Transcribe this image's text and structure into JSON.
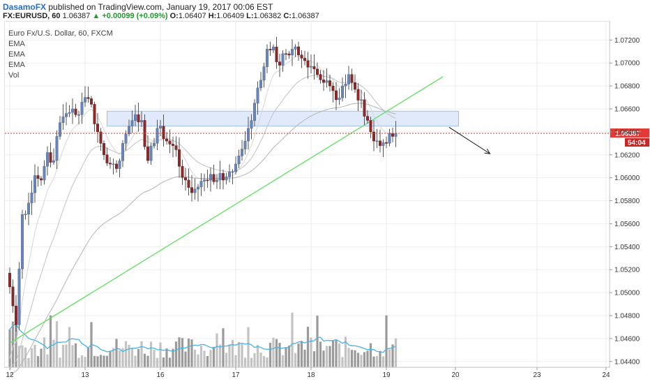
{
  "header": {
    "author": "DasamoFX",
    "published_text": "published on TradingView.com, January 19, 2017 00:06 EST",
    "symbol": "FX:EURUSD, 60",
    "last": "1.06387",
    "change": "+0.00099 (+0.09%)",
    "open_label": "O:",
    "open": "1.06407",
    "high_label": "H:",
    "high": "1.06409",
    "low_label": "L:",
    "low": "1.06382",
    "close_label": "C:",
    "close": "1.06387"
  },
  "legend": {
    "title": "Euro Fx/U.S. Dollar, 60, FXCM",
    "items": [
      "EMA",
      "EMA",
      "EMA",
      "Vol"
    ]
  },
  "colors": {
    "up": "#6a86b8",
    "down": "#8b2a2a",
    "wick": "#555555",
    "zone_fill": "#dde8fb",
    "zone_stroke": "#9cb6e6",
    "trendline": "#5ee05e",
    "vol_ma": "#47b3e6",
    "price_line": "#d0382f",
    "tag_bg": "#e53935",
    "ema": "#c8c8c8",
    "vol_up": "#b8b8b8",
    "vol_down": "#8a8a8a"
  },
  "chart_data": {
    "type": "candlestick",
    "y_range": [
      1.0435,
      1.0736
    ],
    "y_ticks": [
      "1.07200",
      "1.07000",
      "1.06800",
      "1.06600",
      "1.06400",
      "1.06200",
      "1.06000",
      "1.05800",
      "1.05600",
      "1.05400",
      "1.05200",
      "1.05000",
      "1.04800",
      "1.04600",
      "1.04400"
    ],
    "y_tick_values": [
      1.072,
      1.07,
      1.068,
      1.066,
      1.064,
      1.062,
      1.06,
      1.058,
      1.056,
      1.054,
      1.052,
      1.05,
      1.048,
      1.046,
      1.044
    ],
    "x_ticks": [
      "12",
      "13",
      "16",
      "17",
      "18",
      "19",
      "20",
      "23",
      "24"
    ],
    "x_tick_index": [
      0,
      24,
      48,
      72,
      96,
      120,
      142,
      168,
      190
    ],
    "num_bars": 144,
    "current_price": 1.06387,
    "current_price_label": "1.06387",
    "countdown_label": "54:04",
    "resistance_zone": {
      "from_index": 31,
      "to_index": 143,
      "low": 1.0645,
      "high": 1.0658
    },
    "trendline": {
      "from_index": 0,
      "from_price": 1.0456,
      "to_index": 138,
      "to_price": 1.0688
    },
    "arrow": {
      "from_index": 140,
      "from_price": 1.0644,
      "to_index": 153,
      "to_price": 1.0621
    },
    "anchors": [
      [
        0,
        1.0505
      ],
      [
        2,
        1.0472
      ],
      [
        4,
        1.0568
      ],
      [
        6,
        1.0578
      ],
      [
        8,
        1.0602
      ],
      [
        10,
        1.0598
      ],
      [
        12,
        1.0622
      ],
      [
        14,
        1.0615
      ],
      [
        16,
        1.0648
      ],
      [
        18,
        1.0656
      ],
      [
        20,
        1.066
      ],
      [
        22,
        1.0655
      ],
      [
        24,
        1.067
      ],
      [
        26,
        1.0664
      ],
      [
        28,
        1.064
      ],
      [
        30,
        1.062
      ],
      [
        32,
        1.0612
      ],
      [
        34,
        1.0608
      ],
      [
        36,
        1.063
      ],
      [
        38,
        1.0645
      ],
      [
        40,
        1.0655
      ],
      [
        42,
        1.065
      ],
      [
        44,
        1.0615
      ],
      [
        46,
        1.063
      ],
      [
        48,
        1.0645
      ],
      [
        50,
        1.0632
      ],
      [
        52,
        1.0628
      ],
      [
        54,
        1.061
      ],
      [
        56,
        1.0598
      ],
      [
        58,
        1.0587
      ],
      [
        60,
        1.0592
      ],
      [
        62,
        1.0598
      ],
      [
        64,
        1.0603
      ],
      [
        66,
        1.0598
      ],
      [
        68,
        1.0598
      ],
      [
        70,
        1.0605
      ],
      [
        72,
        1.0612
      ],
      [
        74,
        1.0625
      ],
      [
        76,
        1.0643
      ],
      [
        78,
        1.0665
      ],
      [
        80,
        1.0685
      ],
      [
        82,
        1.0712
      ],
      [
        84,
        1.0714
      ],
      [
        86,
        1.0698
      ],
      [
        88,
        1.0708
      ],
      [
        90,
        1.0712
      ],
      [
        92,
        1.0707
      ],
      [
        94,
        1.0702
      ],
      [
        96,
        1.0697
      ],
      [
        98,
        1.069
      ],
      [
        100,
        1.0683
      ],
      [
        102,
        1.068
      ],
      [
        104,
        1.0668
      ],
      [
        106,
        1.068
      ],
      [
        108,
        1.069
      ],
      [
        110,
        1.0677
      ],
      [
        112,
        1.0668
      ],
      [
        114,
        1.065
      ],
      [
        116,
        1.0632
      ],
      [
        118,
        1.0628
      ],
      [
        120,
        1.063
      ],
      [
        122,
        1.0636
      ],
      [
        123,
        1.06387
      ]
    ],
    "volume_scale_max": 100
  }
}
